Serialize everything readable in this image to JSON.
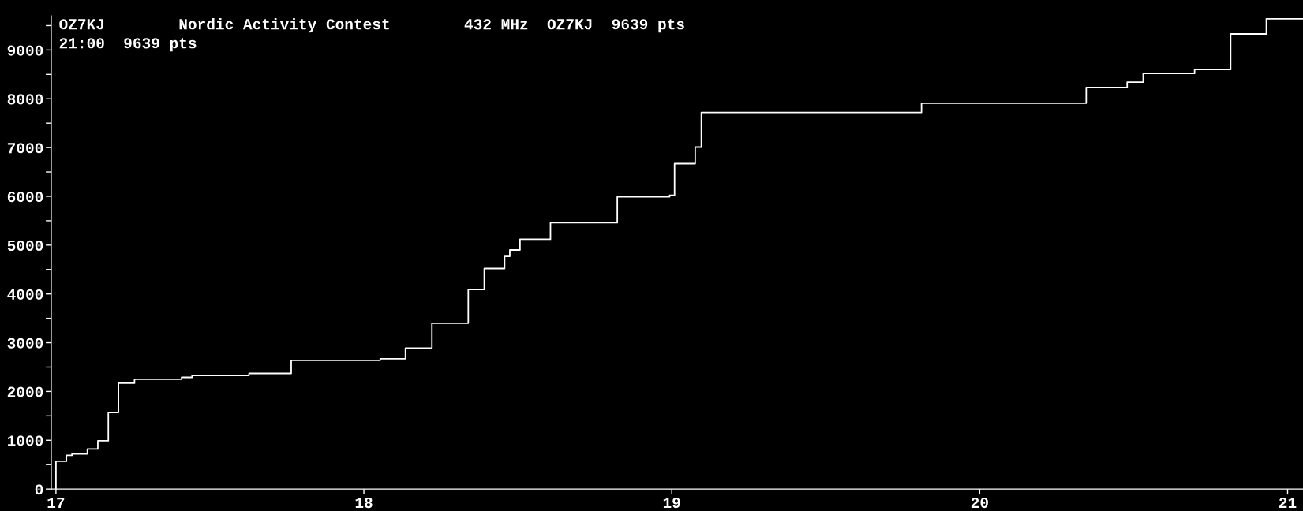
{
  "chart_data": {
    "type": "step",
    "title": "OZ7KJ        Nordic Activity Contest        432 MHz  OZ7KJ  9639 pts",
    "subtitle": "21:00  9639 pts",
    "series": [
      {
        "color": "#ffffff",
        "x": [
          17.0,
          17.0,
          17.034,
          17.052,
          17.102,
          17.136,
          17.17,
          17.203,
          17.255,
          17.408,
          17.442,
          17.627,
          17.764,
          18.053,
          18.135,
          18.221,
          18.339,
          18.391,
          18.457,
          18.474,
          18.507,
          18.606,
          18.823,
          18.993,
          19.009,
          19.076,
          19.096,
          19.811,
          20.346,
          20.479,
          20.531,
          20.698,
          20.815,
          20.931,
          21.05
        ],
        "values": [
          0,
          570,
          690,
          720,
          820,
          990,
          1570,
          2170,
          2250,
          2290,
          2330,
          2370,
          2640,
          2670,
          2890,
          3400,
          4090,
          4520,
          4770,
          4900,
          5120,
          5460,
          5990,
          6020,
          6670,
          7010,
          7720,
          7910,
          8230,
          8340,
          8520,
          8600,
          9330,
          9640,
          9640
        ]
      }
    ],
    "xlim": [
      16.985,
      21.05
    ],
    "xticks": [
      17,
      18,
      19,
      20,
      21
    ],
    "ylim": [
      0,
      9700
    ],
    "yticks": [
      0,
      {
        "value": 500,
        "label": null
      },
      1000,
      {
        "value": 1500,
        "label": null
      },
      2000,
      {
        "value": 2500,
        "label": null
      },
      3000,
      {
        "value": 3500,
        "label": null
      },
      4000,
      {
        "value": 4500,
        "label": null
      },
      5000,
      {
        "value": 5500,
        "label": null
      },
      6000,
      {
        "value": 6500,
        "label": null
      },
      7000,
      {
        "value": 7500,
        "label": null
      },
      8000,
      {
        "value": 8500,
        "label": null
      },
      9000,
      {
        "value": 9500,
        "label": null
      }
    ],
    "grid": false,
    "legend": false,
    "line_style": "solid",
    "marker": "none"
  }
}
